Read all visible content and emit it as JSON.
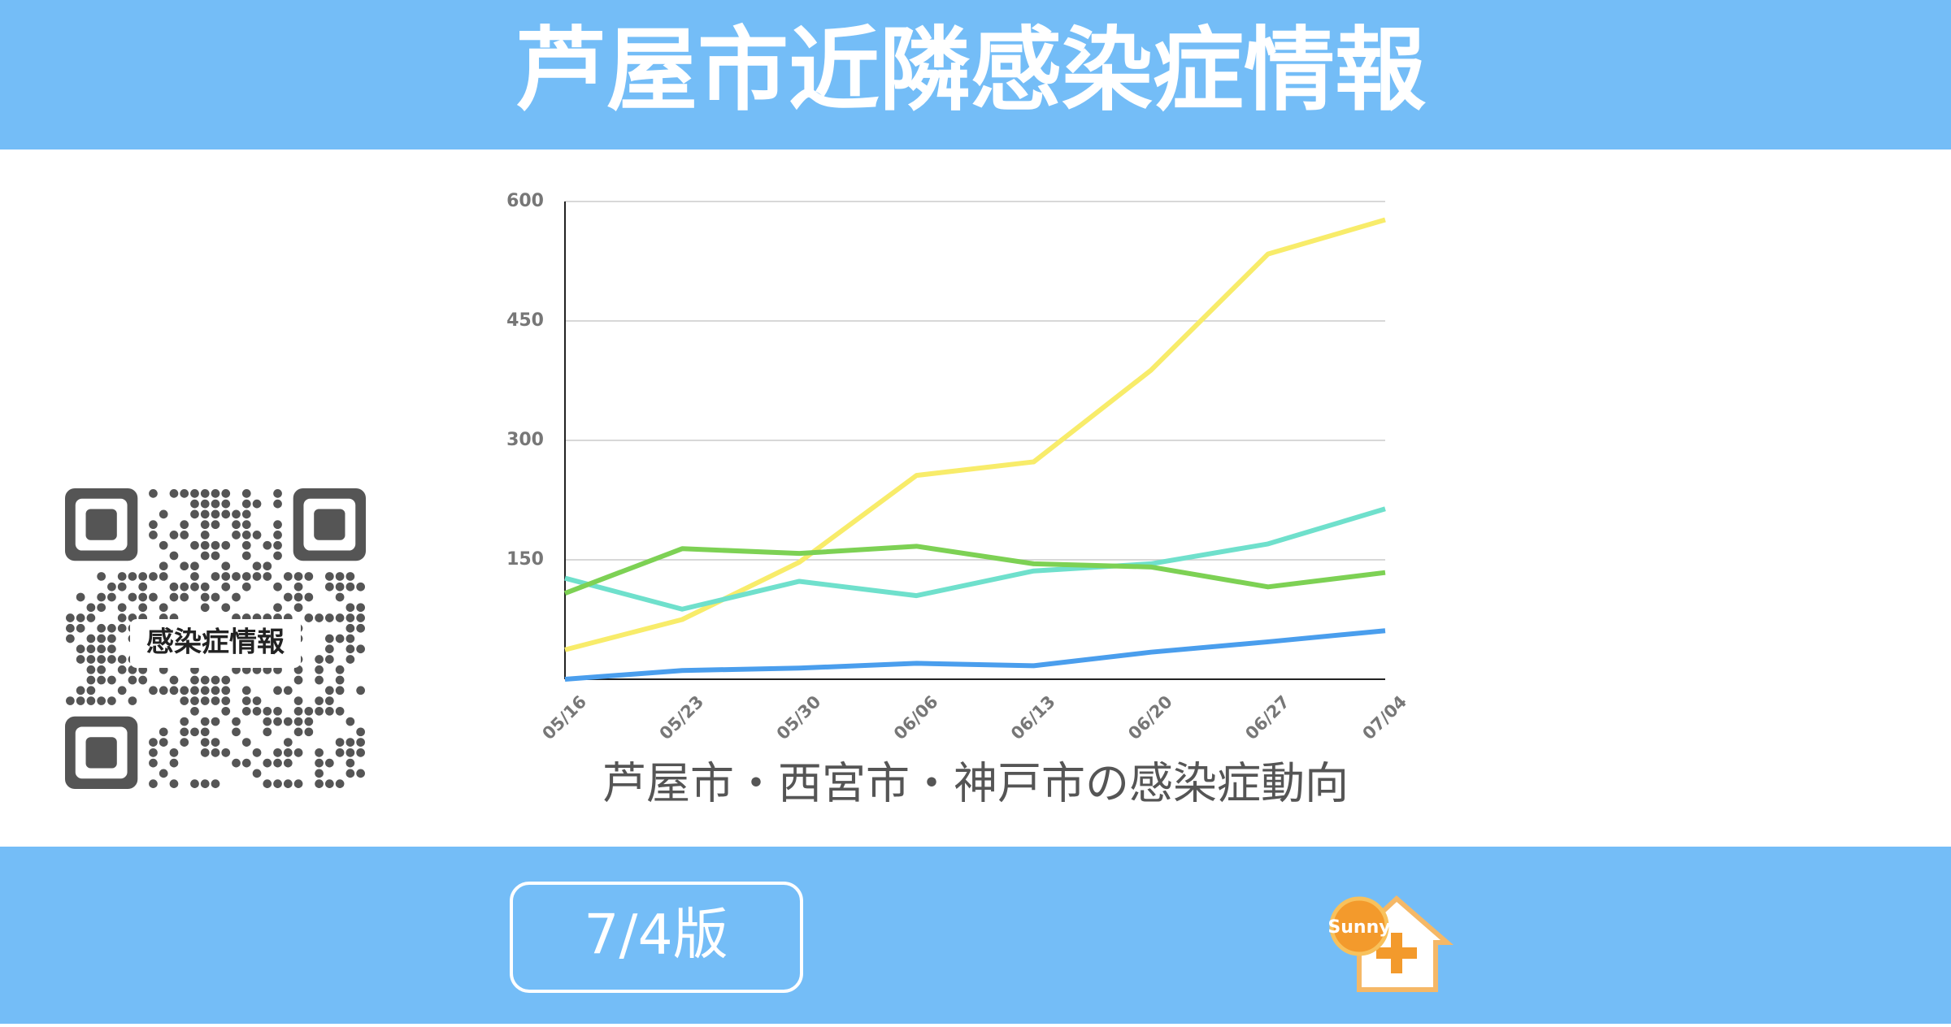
{
  "header": {
    "title": "芦屋市近隣感染症情報"
  },
  "qr": {
    "label": "感染症情報"
  },
  "chart_data": {
    "type": "line",
    "caption": "芦屋市・西宮市・神戸市の感染症動向",
    "categories": [
      "05/16",
      "05/23",
      "05/30",
      "06/06",
      "06/13",
      "06/20",
      "06/27",
      "07/04"
    ],
    "series": [
      {
        "color": "#f8ec6a",
        "values": [
          37,
          75,
          147,
          256,
          273,
          388,
          534,
          577
        ]
      },
      {
        "color": "#6fe0cc",
        "values": [
          127,
          88,
          123,
          105,
          136,
          145,
          170,
          214
        ]
      },
      {
        "color": "#7dd154",
        "values": [
          108,
          164,
          158,
          167,
          145,
          141,
          116,
          134
        ]
      },
      {
        "color": "#4a9eed",
        "values": [
          0,
          11,
          14,
          20,
          17,
          34,
          47,
          61
        ]
      }
    ],
    "ylim": [
      0,
      600
    ],
    "yticks": [
      150,
      300,
      450,
      600
    ],
    "grid": true
  },
  "footer": {
    "edition": "7/4版",
    "logo": "Sunny"
  }
}
